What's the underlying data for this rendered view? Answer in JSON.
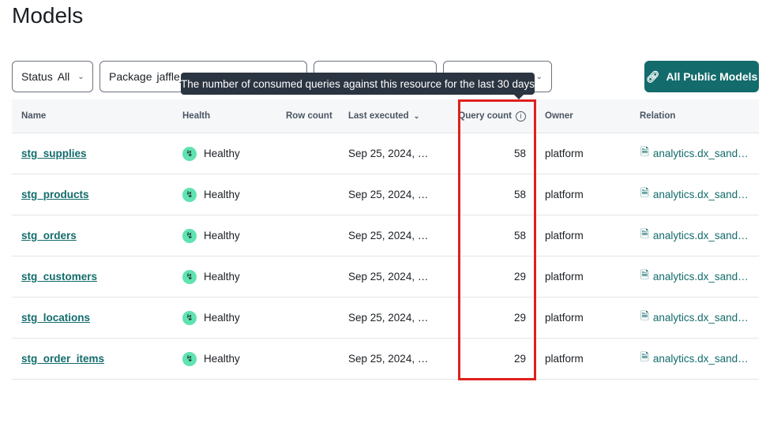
{
  "page": {
    "title": "Models"
  },
  "filters": [
    {
      "label": "Status",
      "value": "All"
    },
    {
      "label": "Package",
      "value": "jaffle_"
    },
    {
      "label": "",
      "value": ""
    },
    {
      "label": "",
      "value": ""
    }
  ],
  "button": {
    "label": "All Public Models",
    "icon": "link-icon",
    "color": "#136b6b"
  },
  "tooltip": "The number of consumed queries against this resource for the last 30 days",
  "columns": {
    "name": "Name",
    "health": "Health",
    "row_count": "Row count",
    "last_executed": "Last executed",
    "query_count": "Query count",
    "owner": "Owner",
    "relation": "Relation"
  },
  "rows": [
    {
      "name": "stg_supplies",
      "health": "Healthy",
      "last_executed": "Sep 25, 2024, …",
      "query_count": "58",
      "owner": "platform",
      "relation": "analytics.dx_sand…"
    },
    {
      "name": "stg_products",
      "health": "Healthy",
      "last_executed": "Sep 25, 2024, …",
      "query_count": "58",
      "owner": "platform",
      "relation": "analytics.dx_sand…"
    },
    {
      "name": "stg_orders",
      "health": "Healthy",
      "last_executed": "Sep 25, 2024, …",
      "query_count": "58",
      "owner": "platform",
      "relation": "analytics.dx_sand…"
    },
    {
      "name": "stg_customers",
      "health": "Healthy",
      "last_executed": "Sep 25, 2024, …",
      "query_count": "29",
      "owner": "platform",
      "relation": "analytics.dx_sand…"
    },
    {
      "name": "stg_locations",
      "health": "Healthy",
      "last_executed": "Sep 25, 2024, …",
      "query_count": "29",
      "owner": "platform",
      "relation": "analytics.dx_sand…"
    },
    {
      "name": "stg_order_items",
      "health": "Healthy",
      "last_executed": "Sep 25, 2024, …",
      "query_count": "29",
      "owner": "platform",
      "relation": "analytics.dx_sand…"
    }
  ]
}
